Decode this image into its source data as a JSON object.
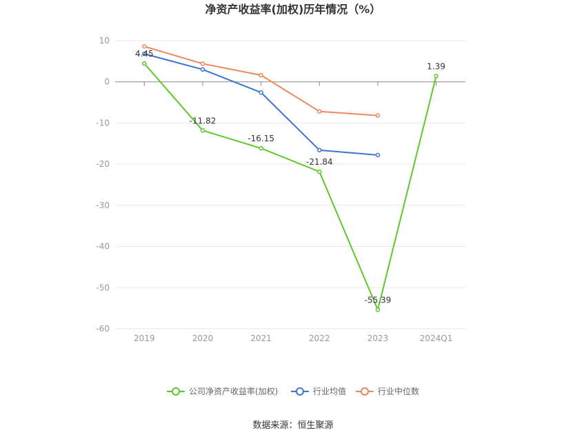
{
  "chart_data": {
    "type": "line",
    "title": "净资产收益率(加权)历年情况（%）",
    "categories": [
      "2019",
      "2020",
      "2021",
      "2022",
      "2023",
      "2024Q1"
    ],
    "ylim": [
      -60,
      10
    ],
    "yticks": [
      10,
      0,
      -10,
      -20,
      -30,
      -40,
      -50,
      -60
    ],
    "grid": true,
    "legend_position": "bottom",
    "series": [
      {
        "name": "公司净资产收益率(加权)",
        "color": "#5cc828",
        "values": [
          4.45,
          -11.82,
          -16.15,
          -21.84,
          -55.39,
          1.39
        ],
        "labels": [
          "4.45",
          "-11.82",
          "-16.15",
          "-21.84",
          "-55.39",
          "1.39"
        ]
      },
      {
        "name": "行业均值",
        "color": "#3b73d6",
        "values": [
          6.8,
          3.0,
          -2.6,
          -16.6,
          -17.8,
          null
        ]
      },
      {
        "name": "行业中位数",
        "color": "#f0875a",
        "values": [
          8.6,
          4.4,
          1.6,
          -7.2,
          -8.2,
          null
        ]
      }
    ],
    "source": "数据来源：恒生聚源"
  }
}
